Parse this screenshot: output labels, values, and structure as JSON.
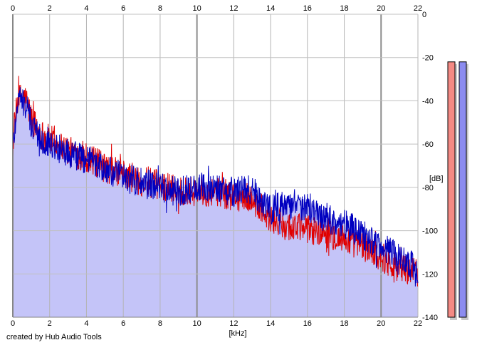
{
  "chart_data": {
    "type": "area",
    "xlabel": "[kHz]",
    "ylabel": "[dB]",
    "xlim": [
      0,
      22
    ],
    "ylim": [
      -140,
      0
    ],
    "x_ticks": [
      "0",
      "2",
      "4",
      "6",
      "8",
      "10",
      "12",
      "14",
      "16",
      "18",
      "20",
      "22"
    ],
    "y_ticks": [
      "0",
      "-20",
      "-40",
      "-60",
      "-80",
      "-100",
      "-120",
      "-140"
    ],
    "grid": true,
    "series": [
      {
        "color": "#e00000",
        "x": [
          0,
          0.25,
          0.5,
          0.75,
          1,
          1.5,
          2,
          2.5,
          3,
          3.5,
          4,
          5,
          6,
          7,
          8,
          9,
          10,
          11,
          12,
          13,
          13.5,
          14,
          15,
          16,
          17,
          18,
          19,
          20,
          21,
          22
        ],
        "y": [
          -60,
          -40,
          -38,
          -40,
          -48,
          -55,
          -58,
          -60,
          -63,
          -65,
          -66,
          -71,
          -74,
          -77,
          -79,
          -81,
          -82,
          -82,
          -84,
          -85,
          -90,
          -95,
          -98,
          -99,
          -101,
          -104,
          -107,
          -112,
          -117,
          -120
        ]
      },
      {
        "color": "#0000c0",
        "x": [
          0,
          0.25,
          0.5,
          0.75,
          1,
          1.5,
          2,
          2.5,
          3,
          3.5,
          4,
          5,
          6,
          7,
          8,
          9,
          10,
          11,
          12,
          13,
          13.5,
          14,
          15,
          16,
          17,
          18,
          19,
          20,
          21,
          22
        ],
        "y": [
          -62,
          -40,
          -40,
          -43,
          -51,
          -57,
          -59,
          -62,
          -64,
          -66,
          -67,
          -72,
          -75,
          -78,
          -80,
          -82,
          -80,
          -80,
          -82,
          -81,
          -86,
          -90,
          -88,
          -90,
          -94,
          -97,
          -102,
          -107,
          -113,
          -118
        ]
      }
    ],
    "fill_color": "#c4c4f8",
    "meters": [
      {
        "color": "#f48a84",
        "value_db": -22
      },
      {
        "color": "#8c8cf0",
        "value_db": -22
      }
    ]
  },
  "footer": {
    "credit": "created by Hub Audio Tools"
  }
}
